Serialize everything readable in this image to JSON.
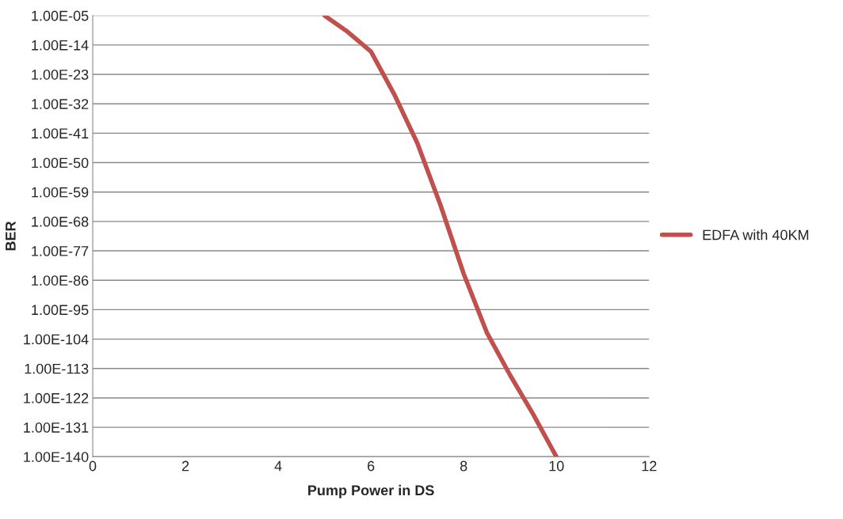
{
  "chart_data": {
    "type": "line",
    "xlabel": "Pump Power in DS",
    "ylabel": "BER",
    "log": "y",
    "grid": "y",
    "legend": "right",
    "line_style": "solid",
    "marker": "none",
    "xlim": [
      0,
      12
    ],
    "xticks": [
      0,
      2,
      4,
      6,
      8,
      10,
      12
    ],
    "ylim": [
      1e-140,
      1e-05
    ],
    "yticks": [
      {
        "value": 1e-05,
        "label": "1.00E-05"
      },
      {
        "value": 1e-14,
        "label": "1.00E-14"
      },
      {
        "value": 1e-23,
        "label": "1.00E-23"
      },
      {
        "value": 1e-32,
        "label": "1.00E-32"
      },
      {
        "value": 1e-41,
        "label": "1.00E-41"
      },
      {
        "value": 1e-50,
        "label": "1.00E-50"
      },
      {
        "value": 1e-59,
        "label": "1.00E-59"
      },
      {
        "value": 1e-68,
        "label": "1.00E-68"
      },
      {
        "value": 1e-77,
        "label": "1.00E-77"
      },
      {
        "value": 1e-86,
        "label": "1.00E-86"
      },
      {
        "value": 1e-95,
        "label": "1.00E-95"
      },
      {
        "value": 1e-104,
        "label": "1.00E-104"
      },
      {
        "value": 1e-113,
        "label": "1.00E-113"
      },
      {
        "value": 1e-122,
        "label": "1.00E-122"
      },
      {
        "value": 1e-131,
        "label": "1.00E-131"
      },
      {
        "value": 1e-140,
        "label": "1.00E-140"
      }
    ],
    "x": [
      5,
      5.5,
      6,
      6.5,
      7,
      7.5,
      8,
      8.5,
      9,
      9.5,
      10
    ],
    "series": [
      {
        "name": "EDFA with 40KM",
        "color": "#c0504d",
        "values": [
          1e-05,
          1e-10,
          1e-16,
          1e-29,
          1e-44,
          1e-63,
          1e-84,
          1e-102,
          1e-115,
          1e-127,
          1e-140
        ]
      }
    ]
  }
}
